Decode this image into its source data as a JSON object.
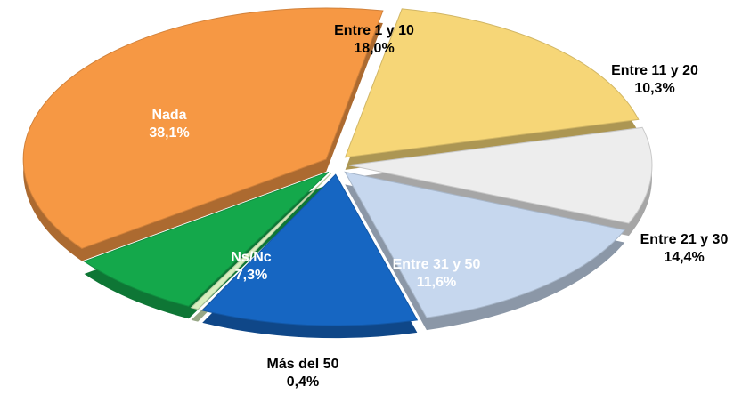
{
  "chart_data": {
    "type": "pie",
    "categories": [
      "Entre 1 y 10",
      "Entre 11 y 20",
      "Entre 21 y 30",
      "Entre 31 y 50",
      "Más del 50",
      "Ns/Nc",
      "Nada"
    ],
    "values": [
      18.0,
      10.3,
      14.4,
      11.6,
      0.4,
      7.3,
      38.1
    ],
    "value_labels": [
      "18,0%",
      "10,3%",
      "14,4%",
      "11,6%",
      "0,4%",
      "7,3%",
      "38,1%"
    ],
    "colors": [
      "#f6d677",
      "#ededed",
      "#c6d7ee",
      "#1666c2",
      "#d8efbf",
      "#14a84b",
      "#f69844"
    ]
  }
}
